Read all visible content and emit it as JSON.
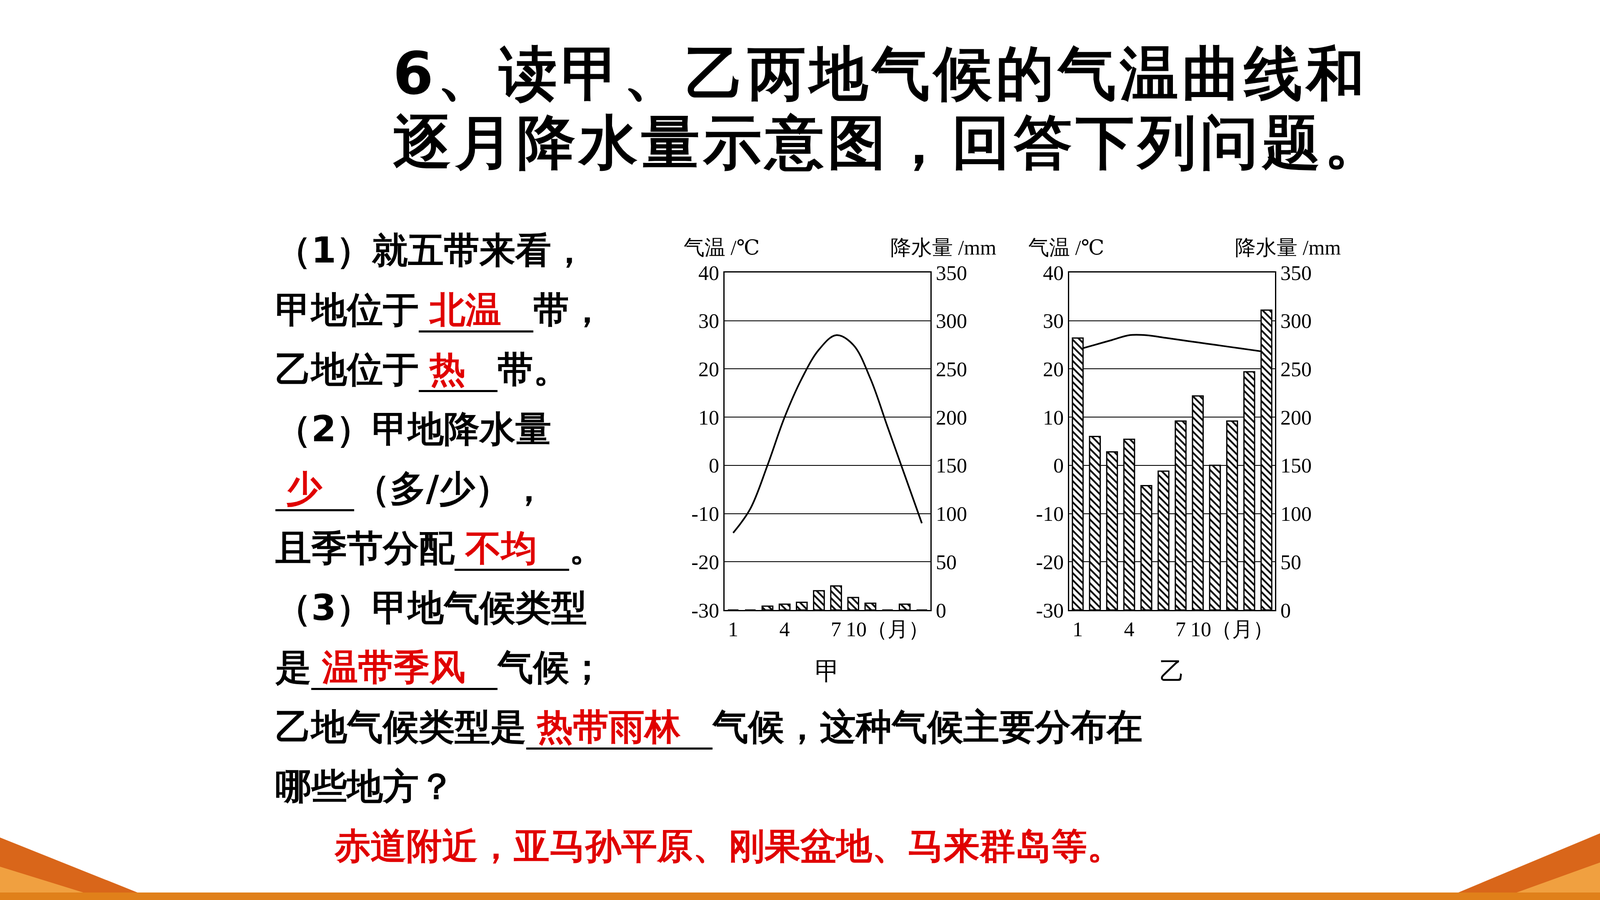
{
  "title": [
    "6、读甲、乙两地气候的气温曲线和",
    "逐月降水量示意图，回答下列问题。"
  ],
  "lines": [
    [
      {
        "text": "（1）就五带来看，"
      }
    ],
    [
      {
        "text": "甲地位于"
      },
      {
        "answer": "北温"
      },
      {
        "text": "带，"
      }
    ],
    [
      {
        "text": "乙地位于"
      },
      {
        "answer": "热"
      },
      {
        "text": "带。"
      }
    ],
    [
      {
        "text": "（2）甲地降水量"
      }
    ],
    [
      {
        "answer": "少"
      },
      {
        "text": "（多/少），"
      }
    ],
    [
      {
        "text": "且季节分配"
      },
      {
        "answer": "不均"
      },
      {
        "text": "。"
      }
    ],
    [
      {
        "text": "（3）甲地气候类型"
      }
    ],
    [
      {
        "text": "是"
      },
      {
        "answer": "温带季风"
      },
      {
        "text": "气候；"
      }
    ],
    [
      {
        "text": "乙地气候类型是"
      },
      {
        "answer": "热带雨林"
      },
      {
        "text": "气候，这种气候主要分布在"
      }
    ],
    [
      {
        "text": "哪些地方？"
      }
    ]
  ],
  "final_answer": "赤道附近，亚马孙平原、刚果盆地、马来群岛等。",
  "chart_data": [
    {
      "type": "bar",
      "title": "甲",
      "ylabel": "气温 /℃",
      "y2label": "降水量 /mm",
      "x": [
        1,
        2,
        3,
        4,
        5,
        6,
        7,
        8,
        9,
        10,
        11,
        12
      ],
      "xlim": [
        0.5,
        12.5
      ],
      "xticks": [
        1,
        4,
        7,
        {
          "value": 10,
          "label": "10（月）"
        }
      ],
      "ylim": [
        -30,
        40
      ],
      "yticks": [
        -30,
        -20,
        -10,
        0,
        10,
        20,
        30,
        40
      ],
      "y2lim": [
        0,
        350
      ],
      "y2ticks": [
        0,
        50,
        100,
        150,
        200,
        250,
        300,
        350
      ],
      "grid": true,
      "series": [
        {
          "type": "bar",
          "axis": "y2",
          "color": "#000000",
          "values": [
            0,
            0,
            4,
            6,
            8,
            20,
            25,
            13,
            7,
            0,
            6,
            0
          ]
        },
        {
          "type": "line",
          "color": "#000000",
          "values": [
            -14,
            -9,
            0,
            10,
            18,
            24,
            27,
            25,
            18,
            8,
            -2,
            -12
          ]
        }
      ]
    },
    {
      "type": "bar",
      "title": "乙",
      "ylabel": "气温 /℃",
      "y2label": "降水量 /mm",
      "x": [
        1,
        2,
        3,
        4,
        5,
        6,
        7,
        8,
        9,
        10,
        11,
        12
      ],
      "xlim": [
        0.5,
        12.5
      ],
      "xticks": [
        1,
        4,
        7,
        {
          "value": 10,
          "label": "10（月）"
        }
      ],
      "ylim": [
        -30,
        40
      ],
      "yticks": [
        -30,
        -20,
        -10,
        0,
        10,
        20,
        30,
        40
      ],
      "y2lim": [
        0,
        350
      ],
      "y2ticks": [
        0,
        50,
        100,
        150,
        200,
        250,
        300,
        350
      ],
      "grid": true,
      "series": [
        {
          "type": "bar",
          "axis": "y2",
          "color": "#000000",
          "values": [
            282,
            180,
            164,
            177,
            129,
            144,
            196,
            222,
            150,
            196,
            247,
            311
          ]
        },
        {
          "type": "line",
          "color": "#000000",
          "values": [
            24,
            25,
            26,
            27,
            27,
            26.5,
            26,
            25.5,
            25,
            24.5,
            24,
            23.5
          ]
        }
      ]
    }
  ]
}
